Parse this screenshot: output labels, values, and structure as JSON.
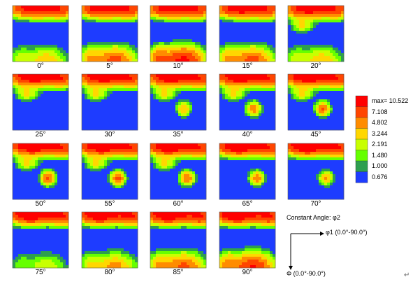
{
  "chart_data": {
    "type": "heatmap",
    "panel_labels": [
      "0°",
      "5°",
      "10°",
      "15°",
      "20°",
      "25°",
      "30°",
      "35°",
      "40°",
      "45°",
      "50°",
      "55°",
      "60°",
      "65°",
      "70°",
      "75°",
      "80°",
      "85°",
      "90°"
    ],
    "legend": {
      "levels": [
        "max= 10.522",
        "7.108",
        "4.802",
        "3.244",
        "2.191",
        "1.480",
        "1.000",
        "0.676"
      ],
      "colors": [
        "#ff0000",
        "#ff4500",
        "#ff8c00",
        "#ffd700",
        "#c8ff00",
        "#66ff00",
        "#2e9e4f",
        "#1e3cff"
      ]
    },
    "background_color": "#1e3cff",
    "section_variable": "φ2",
    "section_range": [
      0,
      90
    ],
    "section_step": 5,
    "max_intensity": 10.522
  },
  "annotation": {
    "constant_angle": "Constant Angle: φ2",
    "phi1_label": "φ1 (0.0°-90.0°)",
    "Phi_label": "Φ (0.0°-90.0°)"
  },
  "return_mark": "↵"
}
